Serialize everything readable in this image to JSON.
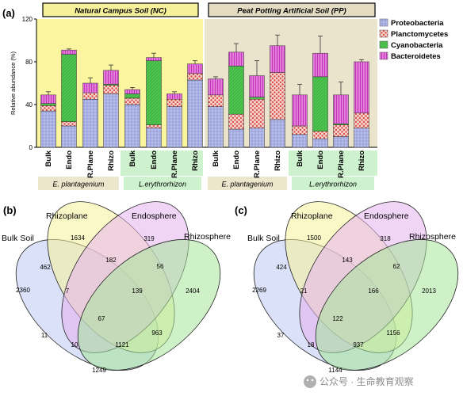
{
  "panel_labels": [
    "(a)",
    "(b)",
    "(c)"
  ],
  "region_headers": {
    "nc": "Natural Campus Soil (NC)",
    "pp": "Peat Potting Artificial Soil (PP)"
  },
  "plant_labels": [
    "E. plantagenium",
    "L.erythrorhizon",
    "E. plantagenium",
    "L.erythrorhizon"
  ],
  "watermark": "公众号 · 生命教育观察",
  "colors": {
    "proteobacteria": "#b9bfea",
    "planctomycetes": "#e0786f",
    "cyanobacteria": "#4ec24e",
    "bacteroidetes": "#dd5ad6",
    "nc_bg": "#fbf5a0",
    "pp_bg": "#eae4cc",
    "plant_bg": "#ece6cc",
    "lery_bg": "#cdf2cd"
  },
  "chart_data": [
    {
      "type": "bar",
      "stacked": true,
      "title": "",
      "xlabel": "",
      "ylabel": "Relative abundance (%)",
      "ylim": [
        0,
        120
      ],
      "yticks": [
        0,
        40,
        80,
        120
      ],
      "categories": [
        "Bulk",
        "Endo",
        "R.Plane",
        "Rhizo",
        "Bulk",
        "Endo",
        "R.Plane",
        "Rhizo",
        "Bulk",
        "Endo",
        "R.Plane",
        "Rhizo",
        "Bulk",
        "Endo",
        "R.Plane",
        "Rhizo"
      ],
      "legend_position": "top-right",
      "series": [
        {
          "name": "Proteobacteria",
          "values": [
            34,
            20,
            45,
            50,
            40,
            18,
            38,
            63,
            38,
            17,
            18,
            26,
            12,
            8,
            10,
            18
          ]
        },
        {
          "name": "Planctomycetes",
          "values": [
            5,
            4,
            6,
            8,
            6,
            3,
            7,
            6,
            11,
            14,
            27,
            44,
            8,
            7,
            11,
            14
          ]
        },
        {
          "name": "Cyanobacteria",
          "values": [
            2,
            63,
            0,
            1,
            4,
            60,
            0,
            0,
            0,
            45,
            2,
            0,
            0,
            51,
            1,
            0
          ]
        },
        {
          "name": "Bacteroidetes",
          "values": [
            8,
            4,
            9,
            13,
            4,
            3,
            5,
            9,
            15,
            13,
            20,
            25,
            29,
            22,
            27,
            48
          ]
        }
      ],
      "error_bars": [
        3,
        1,
        5,
        5,
        2,
        4,
        2,
        3,
        2,
        8,
        14,
        10,
        10,
        16,
        12,
        2
      ]
    },
    {
      "type": "venn",
      "sets": [
        "Bulk Soil",
        "Rhizoplane",
        "Endosphere",
        "Rhizosphere"
      ],
      "regions": {
        "bulk_only": 2360,
        "rhizoplane_only": 1634,
        "endosphere_only": 319,
        "rhizosphere_only": 2404,
        "bulk_rhizoplane": 462,
        "rhizoplane_endosphere": 182,
        "endosphere_rhizosphere": 56,
        "bulk_endosphere": 7,
        "rhizoplane_rhizosphere": 139,
        "bulk_rhizoplane_endosphere": 11,
        "all_four": 67,
        "rhizoplane_endosphere_rhizosphere": 963,
        "bulk_endosphere_rhizosphere": 10,
        "bulk_rhizoplane_rhizosphere": 1121,
        "bulk_rhizosphere": 1249
      }
    },
    {
      "type": "venn",
      "sets": [
        "Bulk Soil",
        "Rhizoplane",
        "Endosphere",
        "Rhizosphere"
      ],
      "regions": {
        "bulk_only": 2269,
        "rhizoplane_only": 1500,
        "endosphere_only": 318,
        "rhizosphere_only": 2013,
        "bulk_rhizoplane": 424,
        "rhizoplane_endosphere": 143,
        "endosphere_rhizosphere": 62,
        "bulk_endosphere": 21,
        "rhizoplane_rhizosphere": 166,
        "bulk_rhizoplane_endosphere": 37,
        "all_four": 122,
        "rhizoplane_endosphere_rhizosphere": 1156,
        "bulk_endosphere_rhizosphere": 18,
        "bulk_rhizoplane_rhizosphere": 937,
        "bulk_rhizosphere": 1144
      }
    }
  ]
}
